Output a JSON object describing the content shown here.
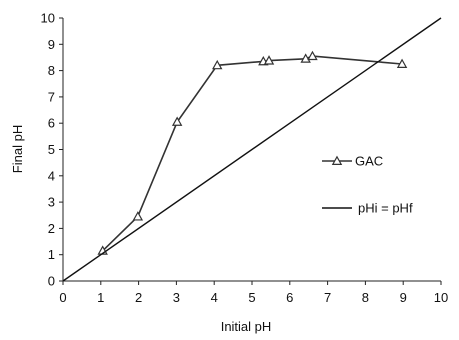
{
  "chart_data": {
    "type": "line",
    "xlabel": "Initial pH",
    "ylabel": "Final pH",
    "xlim": [
      0,
      10
    ],
    "ylim": [
      0,
      10
    ],
    "xticks": [
      "0",
      "1",
      "2",
      "3",
      "4",
      "5",
      "6",
      "7",
      "8",
      "9",
      "10"
    ],
    "yticks": [
      "0",
      "1",
      "2",
      "3",
      "4",
      "5",
      "6",
      "7",
      "8",
      "9",
      "10"
    ],
    "grid": false,
    "legend_position": "right",
    "series": [
      {
        "name": "GAC",
        "marker": "triangle-open",
        "color": "#333333",
        "x": [
          1.05,
          1.98,
          3.02,
          4.08,
          5.3,
          5.45,
          6.42,
          6.6,
          8.97
        ],
        "y": [
          1.15,
          2.45,
          6.05,
          8.2,
          8.35,
          8.38,
          8.45,
          8.55,
          8.25
        ]
      },
      {
        "name": "pHi = pHf",
        "marker": "none",
        "color": "#111111",
        "x": [
          0,
          10
        ],
        "y": [
          0,
          10
        ]
      }
    ]
  }
}
